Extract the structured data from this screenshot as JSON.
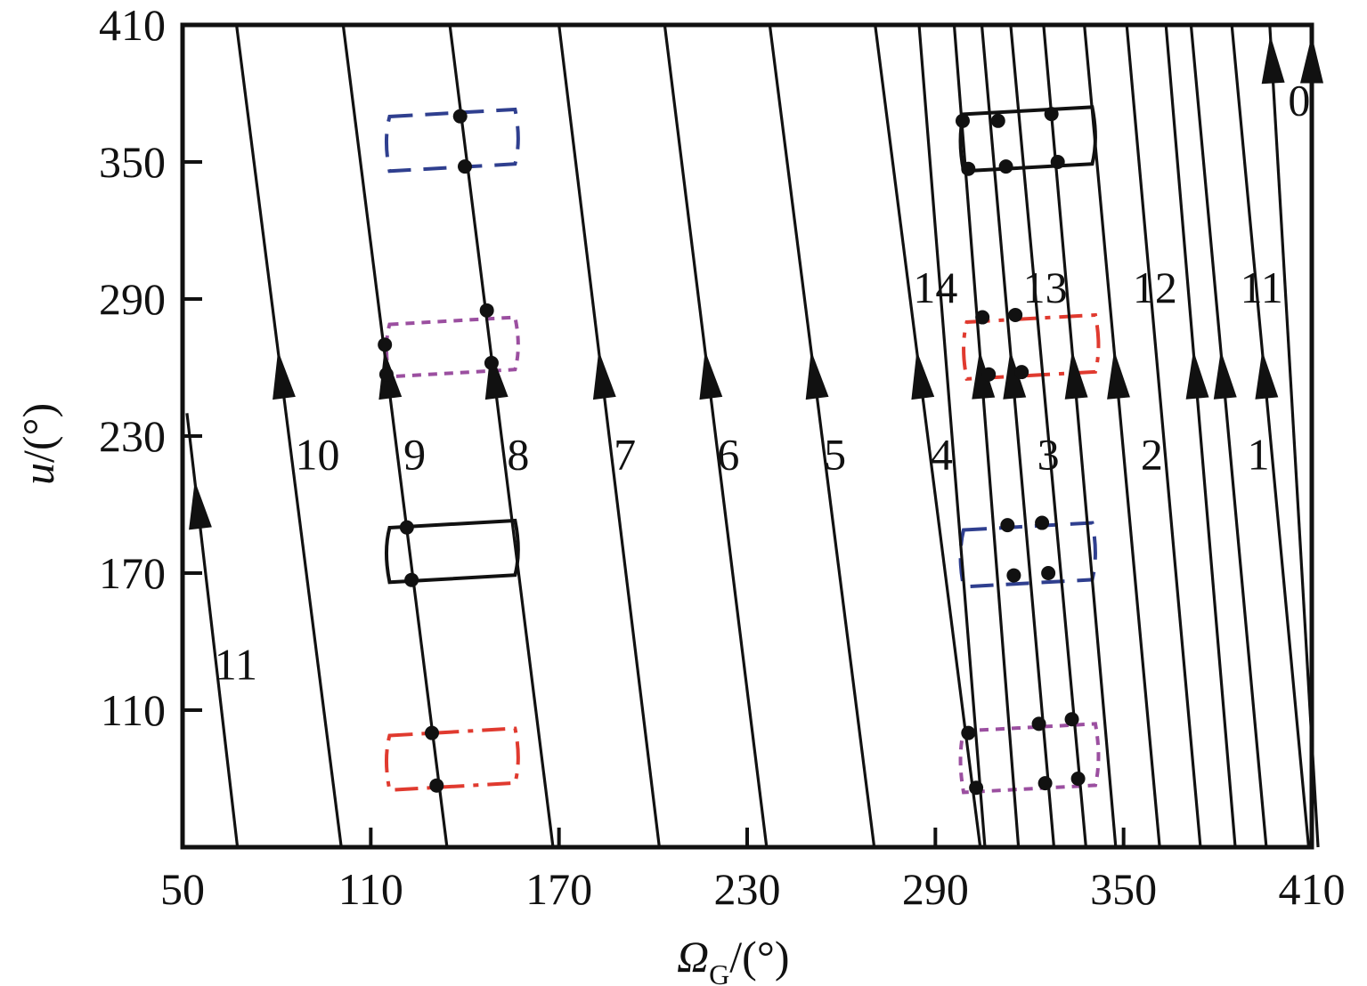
{
  "chart_data": {
    "type": "line",
    "xlabel": {
      "symbol": "Ω",
      "subscript": "G",
      "unit": "/(°)"
    },
    "ylabel": {
      "symbol": "u",
      "unit": "/(°)"
    },
    "xlim": [
      50,
      410
    ],
    "ylim": [
      50,
      410
    ],
    "x_ticks": [
      50,
      110,
      170,
      230,
      290,
      350,
      410
    ],
    "y_ticks": [
      110,
      170,
      230,
      290,
      350,
      410
    ],
    "grid": false,
    "legend": "none",
    "colors": {
      "line": "#111111",
      "red": "#e03a2f",
      "blue": "#2f3f8f",
      "purple": "#9b4fa0",
      "black": "#111111"
    },
    "series": [
      {
        "label": "11",
        "x": [
          51.4,
          67.5
        ],
        "y": [
          240,
          50
        ],
        "arrow_y": 200,
        "label_pos": [
          67,
          130
        ]
      },
      {
        "label": "10",
        "x": [
          67.2,
          100.6
        ],
        "y": [
          410,
          50
        ],
        "arrow_y": 257,
        "label_pos": [
          93,
          222
        ]
      },
      {
        "label": "9",
        "x": [
          101.2,
          134.3
        ],
        "y": [
          410,
          50
        ],
        "arrow_y": 257,
        "label_pos": [
          124,
          222
        ]
      },
      {
        "label": "8",
        "x": [
          135.2,
          168.1
        ],
        "y": [
          410,
          50
        ],
        "arrow_y": 257,
        "label_pos": [
          157,
          222
        ]
      },
      {
        "label": "7",
        "x": [
          170.0,
          202.0
        ],
        "y": [
          410,
          50
        ],
        "arrow_y": 257,
        "label_pos": [
          191,
          222
        ]
      },
      {
        "label": "6",
        "x": [
          203.7,
          236.2
        ],
        "y": [
          410,
          50
        ],
        "arrow_y": 257,
        "label_pos": [
          224,
          222
        ]
      },
      {
        "label": "5",
        "x": [
          237.2,
          270.5
        ],
        "y": [
          410,
          50
        ],
        "arrow_y": 257,
        "label_pos": [
          258,
          222
        ]
      },
      {
        "label": "4",
        "x": [
          270.8,
          304.3
        ],
        "y": [
          410,
          50
        ],
        "arrow_y": 257,
        "label_pos": [
          292,
          222
        ]
      },
      {
        "label": "14",
        "x": [
          284.8,
          305.8
        ],
        "y": [
          410,
          50
        ],
        "arrow_y": null,
        "label_pos": [
          290,
          295
        ]
      },
      {
        "label": "",
        "x": [
          296.0,
          316.5
        ],
        "y": [
          410,
          50
        ],
        "arrow_y": 257,
        "label_pos": null
      },
      {
        "label": "3",
        "x": [
          304.8,
          327.8
        ],
        "y": [
          410,
          50
        ],
        "arrow_y": 257,
        "label_pos": [
          326,
          222
        ]
      },
      {
        "label": "13",
        "x": [
          314.0,
          338.0
        ],
        "y": [
          410,
          50
        ],
        "arrow_y": null,
        "label_pos": [
          325,
          295
        ]
      },
      {
        "label": "",
        "x": [
          324.5,
          347.5
        ],
        "y": [
          410,
          50
        ],
        "arrow_y": 257,
        "label_pos": null
      },
      {
        "label": "2",
        "x": [
          337.5,
          361.5
        ],
        "y": [
          410,
          50
        ],
        "arrow_y": 257,
        "label_pos": [
          359,
          222
        ]
      },
      {
        "label": "12",
        "x": [
          351.0,
          374.5
        ],
        "y": [
          410,
          50
        ],
        "arrow_y": null,
        "label_pos": [
          360,
          295
        ]
      },
      {
        "label": "",
        "x": [
          363.5,
          385.6
        ],
        "y": [
          410,
          50
        ],
        "arrow_y": 257,
        "label_pos": null
      },
      {
        "label": "1",
        "x": [
          371.5,
          395.5
        ],
        "y": [
          410,
          50
        ],
        "arrow_y": 257,
        "label_pos": [
          393,
          222
        ]
      },
      {
        "label": "11",
        "x": [
          384.5,
          409.0
        ],
        "y": [
          410,
          50
        ],
        "arrow_y": 257,
        "label_pos": [
          394,
          295
        ]
      },
      {
        "label": "",
        "x": [
          412.0,
          396.6
        ],
        "y": [
          50,
          410
        ],
        "arrow_y": 395,
        "label_pos": null
      },
      {
        "label": "0",
        "x": [
          410.0,
          410.0
        ],
        "y": [
          260,
          410
        ],
        "arrow_y": 395,
        "label_pos": [
          406,
          377
        ]
      }
    ],
    "annotations": [
      {
        "style": "dashed",
        "color": "blue",
        "x": [
          116,
          156
        ],
        "y": [
          346,
          373
        ]
      },
      {
        "style": "dotted",
        "color": "purple",
        "x": [
          116,
          156
        ],
        "y": [
          256,
          282
        ]
      },
      {
        "style": "solid",
        "color": "black",
        "x": [
          116,
          156
        ],
        "y": [
          166,
          193
        ]
      },
      {
        "style": "dashdot",
        "color": "red",
        "x": [
          116,
          156
        ],
        "y": [
          75,
          102
        ]
      },
      {
        "style": "solid",
        "color": "black",
        "x": [
          299,
          340
        ],
        "y": [
          346,
          374
        ]
      },
      {
        "style": "dashdot",
        "color": "red",
        "x": [
          300,
          341
        ],
        "y": [
          255,
          283
        ]
      },
      {
        "style": "dashed",
        "color": "blue",
        "x": [
          299,
          340
        ],
        "y": [
          164,
          192
        ]
      },
      {
        "style": "dotted",
        "color": "purple",
        "x": [
          299,
          341
        ],
        "y": [
          74,
          104
        ]
      }
    ],
    "points": [
      [
        138.5,
        370
      ],
      [
        140.0,
        348
      ],
      [
        147.0,
        285
      ],
      [
        148.5,
        262
      ],
      [
        114.5,
        270
      ],
      [
        115.0,
        257
      ],
      [
        121.5,
        190
      ],
      [
        123.0,
        167
      ],
      [
        129.5,
        100
      ],
      [
        131.0,
        77
      ],
      [
        298.7,
        368
      ],
      [
        300.5,
        347
      ],
      [
        310.0,
        368
      ],
      [
        312.5,
        348
      ],
      [
        327.0,
        371
      ],
      [
        329.0,
        350
      ],
      [
        305.0,
        282
      ],
      [
        307.0,
        257
      ],
      [
        315.5,
        283
      ],
      [
        317.5,
        258
      ],
      [
        313.0,
        191
      ],
      [
        315.0,
        169
      ],
      [
        324.0,
        192
      ],
      [
        326.0,
        170
      ],
      [
        300.5,
        100
      ],
      [
        303.0,
        76
      ],
      [
        323.0,
        104
      ],
      [
        325.0,
        78
      ],
      [
        333.5,
        106
      ],
      [
        335.5,
        80
      ]
    ]
  }
}
